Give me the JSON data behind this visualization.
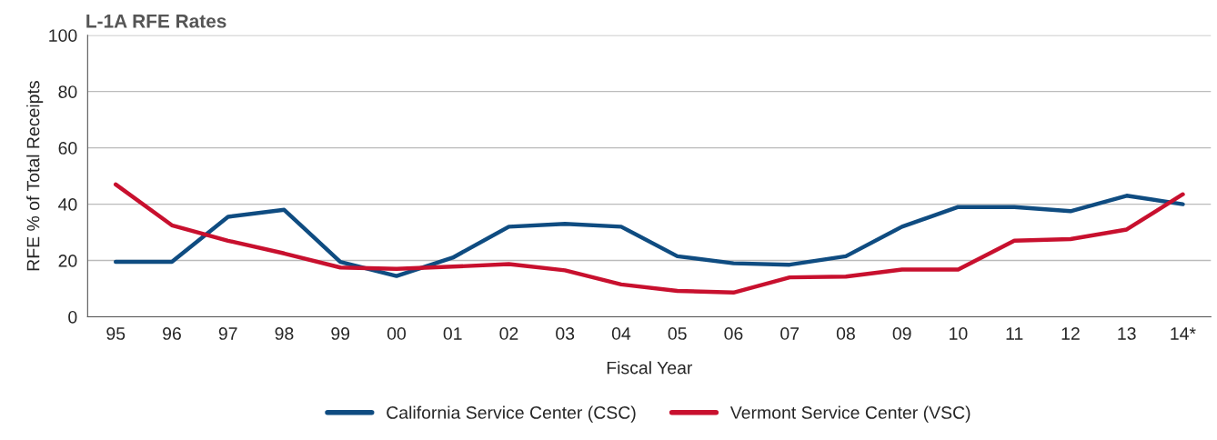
{
  "chart_data": {
    "type": "line",
    "title": "L-1A RFE Rates",
    "xlabel": "Fiscal Year",
    "ylabel": "RFE % of Total Receipts",
    "categories": [
      "95",
      "96",
      "97",
      "98",
      "99",
      "00",
      "01",
      "02",
      "03",
      "04",
      "05",
      "06",
      "07",
      "08",
      "09",
      "10",
      "11",
      "12",
      "13",
      "14*"
    ],
    "series": [
      {
        "name": "California Service Center (CSC)",
        "color": "#0f4c81",
        "values": [
          19.5,
          19.5,
          35.5,
          38,
          19.5,
          14.5,
          21,
          32,
          33,
          32,
          21.5,
          19,
          18.5,
          21.5,
          32,
          39,
          39,
          37.5,
          43,
          40
        ]
      },
      {
        "name": "Vermont Service Center (VSC)",
        "color": "#c8102e",
        "values": [
          47,
          32.5,
          27,
          22.5,
          17.5,
          17,
          17.8,
          18.7,
          16.5,
          11.5,
          9.2,
          8.6,
          14,
          14.3,
          16.8,
          16.8,
          27,
          27.6,
          31,
          43.5
        ]
      }
    ],
    "ylim": [
      0,
      100
    ],
    "yticks": [
      0,
      20,
      40,
      60,
      80,
      100
    ],
    "grid": "y",
    "legend": "bottom",
    "marker": "none",
    "line_style": "solid"
  }
}
